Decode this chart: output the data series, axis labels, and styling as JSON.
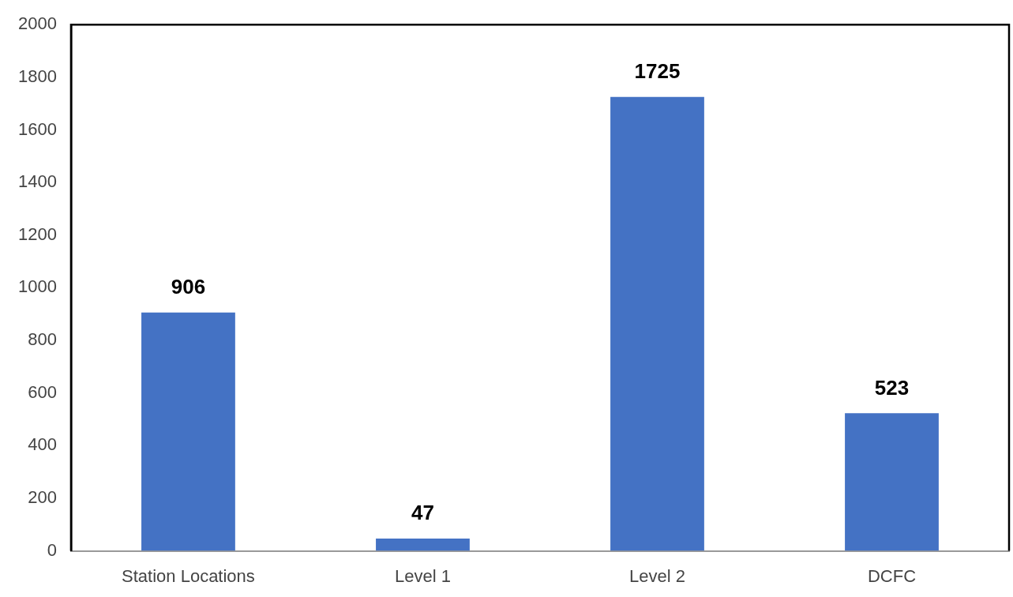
{
  "chart_data": {
    "type": "bar",
    "categories": [
      "Station Locations",
      "Level 1",
      "Level 2",
      "DCFC"
    ],
    "values": [
      906,
      47,
      1725,
      523
    ],
    "color": "#4472c4",
    "ylim": [
      0,
      2000
    ],
    "yticks": [
      0,
      200,
      400,
      600,
      800,
      1000,
      1200,
      1400,
      1600,
      1800,
      2000
    ],
    "data_labels": true
  }
}
